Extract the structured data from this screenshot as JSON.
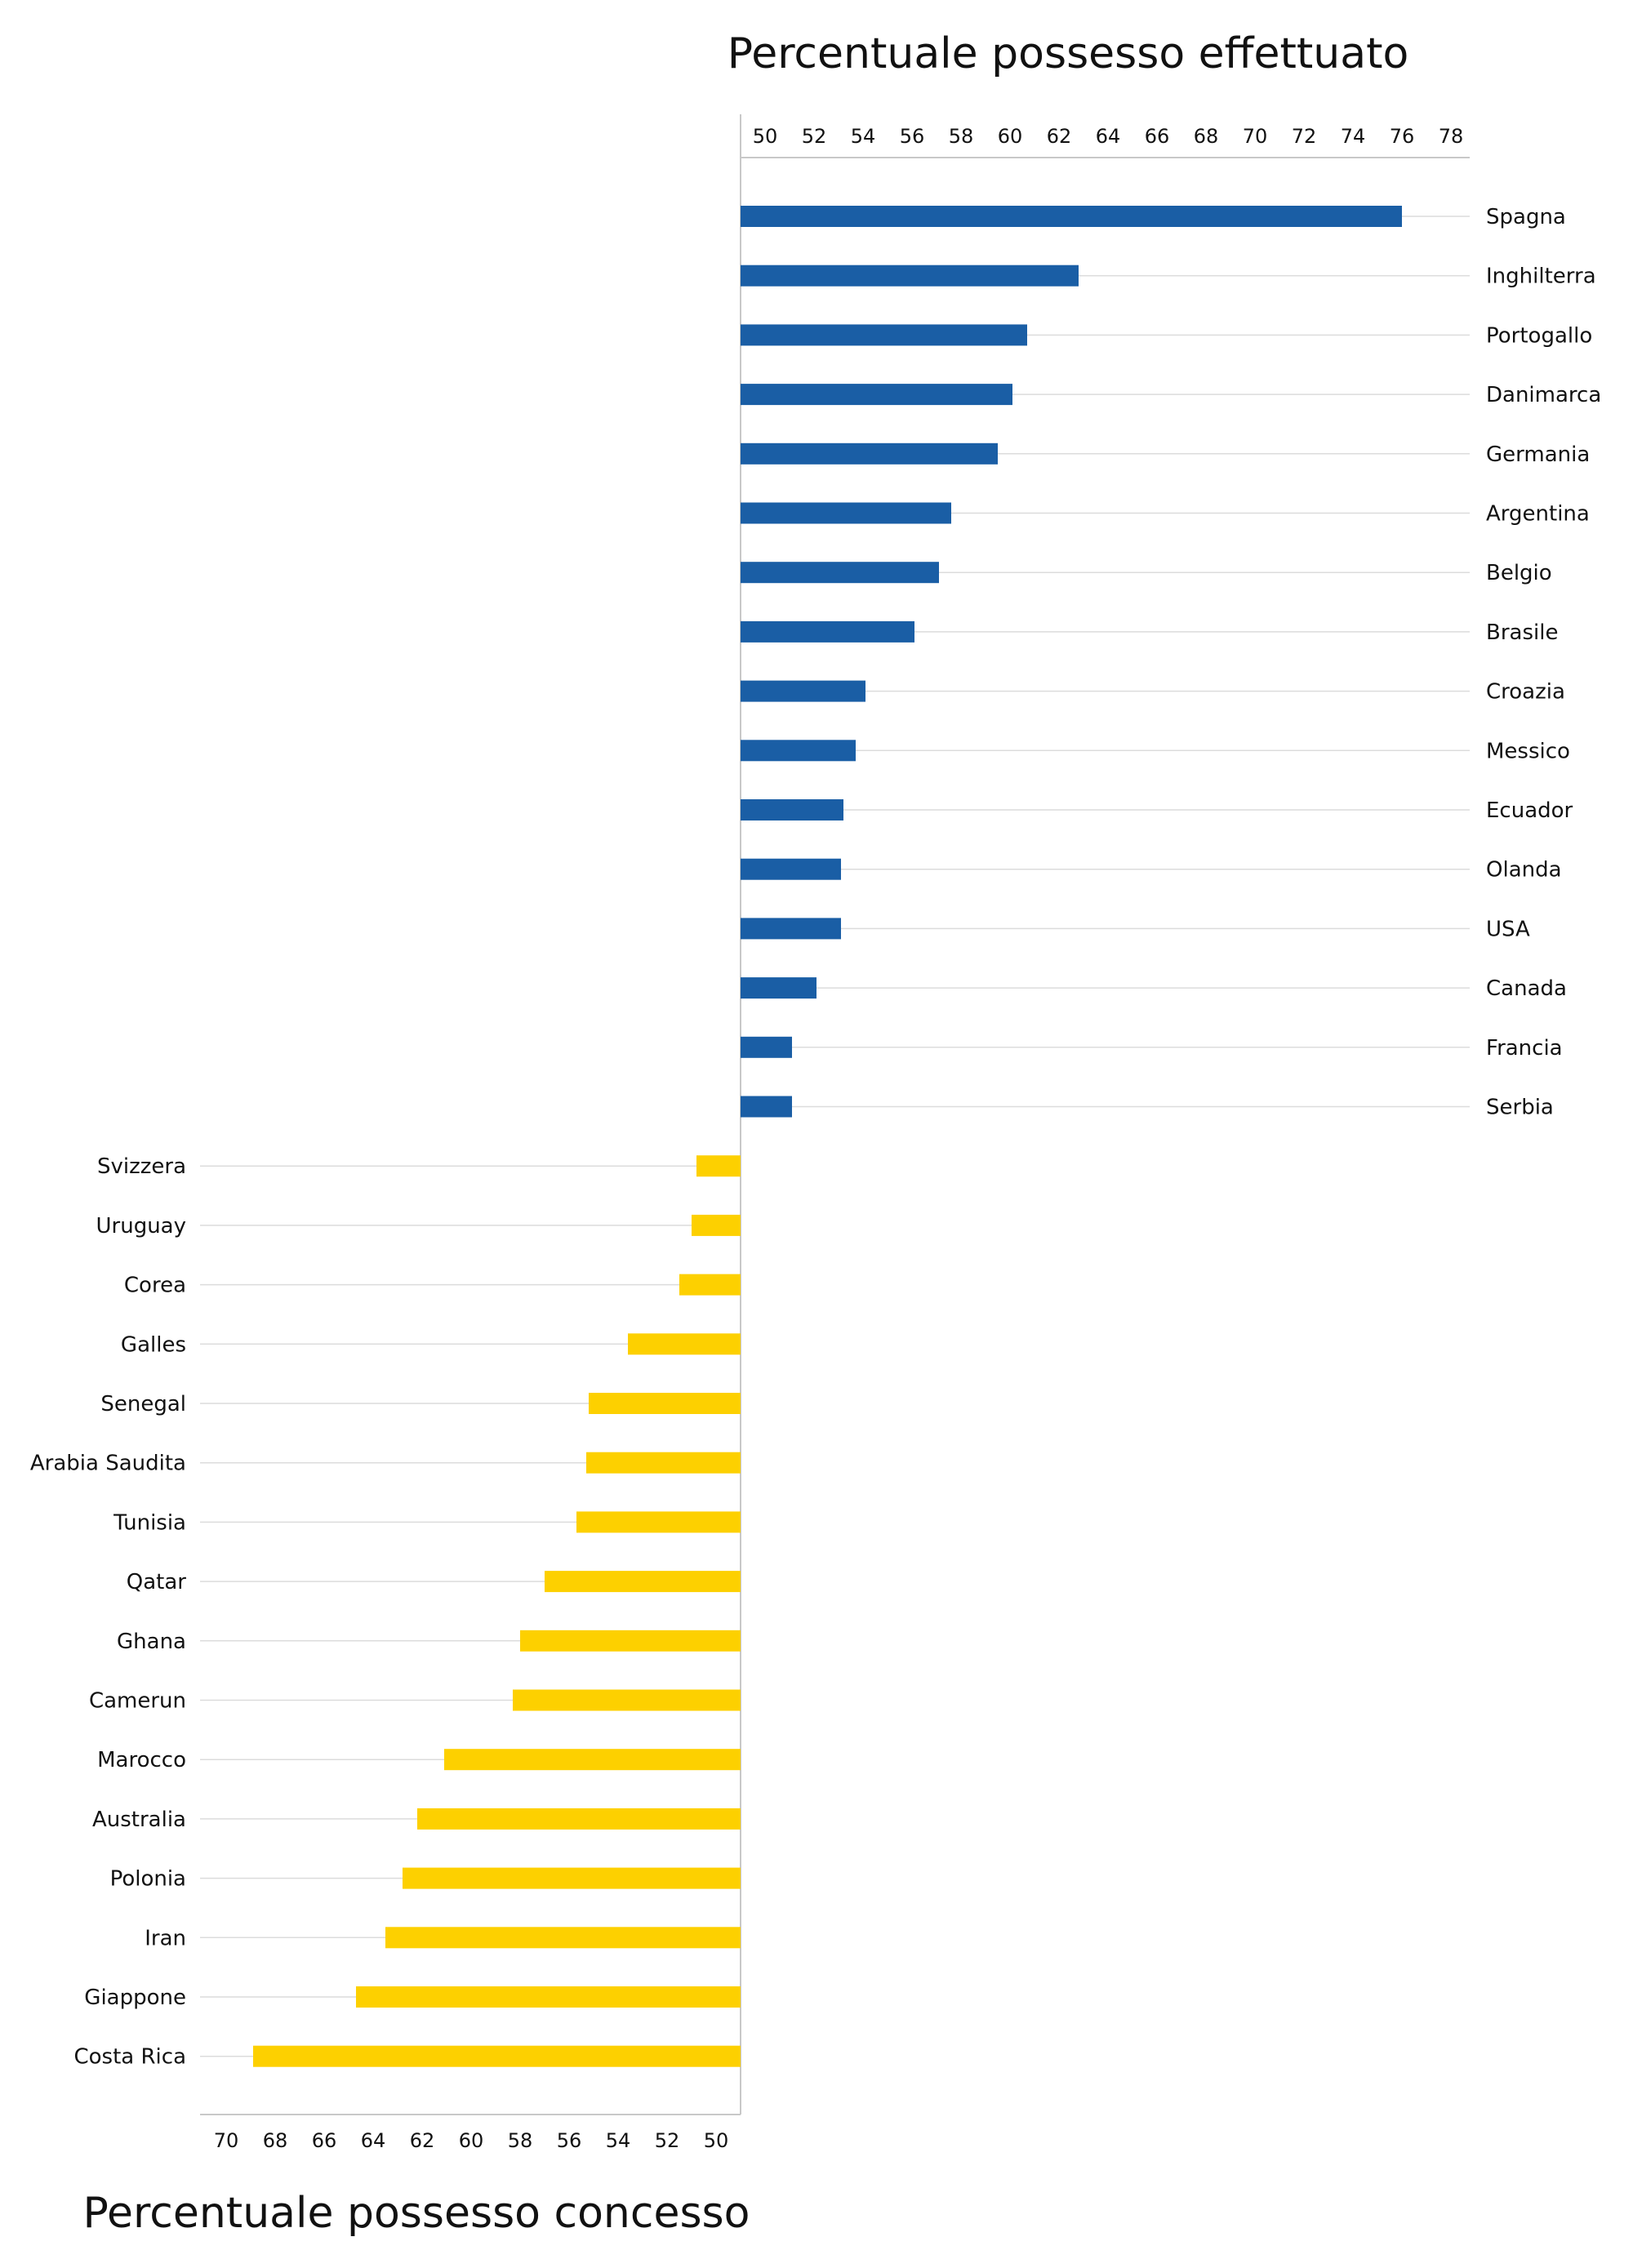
{
  "chart_data": [
    {
      "type": "bar",
      "orientation": "horizontal",
      "title": "Percentuale possesso effettuato",
      "axis_position": "top",
      "xlim": [
        49,
        79
      ],
      "ticks": [
        50,
        52,
        54,
        56,
        58,
        60,
        62,
        64,
        66,
        68,
        70,
        72,
        74,
        76,
        78
      ],
      "color": "#1a5ea5",
      "categories": [
        "Spagna",
        "Inghilterra",
        "Portogallo",
        "Danimarca",
        "Germania",
        "Argentina",
        "Belgio",
        "Brasile",
        "Croazia",
        "Messico",
        "Ecuador",
        "Olanda",
        "USA",
        "Canada",
        "Francia",
        "Serbia"
      ],
      "values": [
        76,
        62.8,
        60.7,
        60.1,
        59.5,
        57.6,
        57.1,
        56.1,
        54.1,
        53.7,
        53.2,
        53.1,
        53.1,
        52.1,
        51.1,
        51.1
      ]
    },
    {
      "type": "bar",
      "orientation": "horizontal",
      "title": "Percentuale possesso concesso",
      "axis_position": "bottom",
      "axis_direction": "reversed",
      "xlim": [
        49,
        71
      ],
      "ticks": [
        70,
        68,
        66,
        64,
        62,
        60,
        58,
        56,
        54,
        52,
        50
      ],
      "color": "#fdd000",
      "categories": [
        "Svizzera",
        "Uruguay",
        "Corea",
        "Galles",
        "Senegal",
        "Arabia Saudita",
        "Tunisia",
        "Qatar",
        "Ghana",
        "Camerun",
        "Marocco",
        "Australia",
        "Polonia",
        "Iran",
        "Giappone",
        "Costa Rica"
      ],
      "values": [
        50.8,
        51,
        51.5,
        53.6,
        55.2,
        55.3,
        55.7,
        57,
        58,
        58.3,
        61.1,
        62.2,
        62.8,
        63.5,
        64.7,
        68.9
      ]
    }
  ]
}
